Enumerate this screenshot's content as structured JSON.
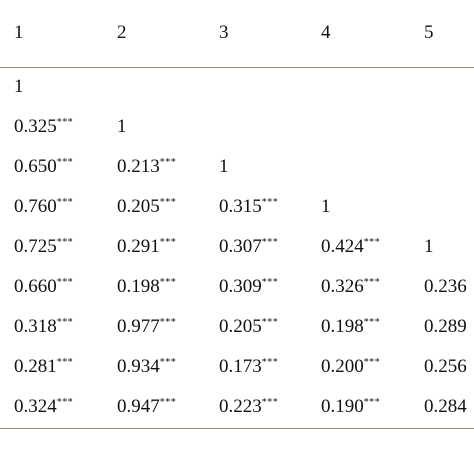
{
  "table": {
    "header": [
      "1",
      "2",
      "3",
      "4",
      "5"
    ],
    "rows": [
      [
        {
          "v": "1",
          "s": ""
        }
      ],
      [
        {
          "v": "0.325",
          "s": "***"
        },
        {
          "v": "1",
          "s": ""
        }
      ],
      [
        {
          "v": "0.650",
          "s": "***"
        },
        {
          "v": "0.213",
          "s": "***"
        },
        {
          "v": "1",
          "s": ""
        }
      ],
      [
        {
          "v": "0.760",
          "s": "***"
        },
        {
          "v": "0.205",
          "s": "***"
        },
        {
          "v": "0.315",
          "s": "***"
        },
        {
          "v": "1",
          "s": ""
        }
      ],
      [
        {
          "v": "0.725",
          "s": "***"
        },
        {
          "v": "0.291",
          "s": "***"
        },
        {
          "v": "0.307",
          "s": "***"
        },
        {
          "v": "0.424",
          "s": "***"
        },
        {
          "v": "1",
          "s": ""
        }
      ],
      [
        {
          "v": "0.660",
          "s": "***"
        },
        {
          "v": "0.198",
          "s": "***"
        },
        {
          "v": "0.309",
          "s": "***"
        },
        {
          "v": "0.326",
          "s": "***"
        },
        {
          "v": "0.236",
          "s": ""
        }
      ],
      [
        {
          "v": "0.318",
          "s": "***"
        },
        {
          "v": "0.977",
          "s": "***"
        },
        {
          "v": "0.205",
          "s": "***"
        },
        {
          "v": "0.198",
          "s": "***"
        },
        {
          "v": "0.289",
          "s": ""
        }
      ],
      [
        {
          "v": "0.281",
          "s": "***"
        },
        {
          "v": "0.934",
          "s": "***"
        },
        {
          "v": "0.173",
          "s": "***"
        },
        {
          "v": "0.200",
          "s": "***"
        },
        {
          "v": "0.256",
          "s": ""
        }
      ],
      [
        {
          "v": "0.324",
          "s": "***"
        },
        {
          "v": "0.947",
          "s": "***"
        },
        {
          "v": "0.223",
          "s": "***"
        },
        {
          "v": "0.190",
          "s": "***"
        },
        {
          "v": "0.284",
          "s": ""
        }
      ]
    ]
  }
}
